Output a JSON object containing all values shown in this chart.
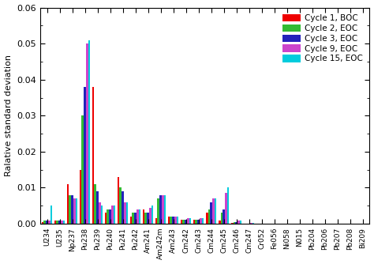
{
  "categories": [
    "U234",
    "U235",
    "Np237",
    "Pu238",
    "Pu239",
    "Pu240",
    "Pu241",
    "Pu242",
    "Am241",
    "Am242m",
    "Am243",
    "Cm242",
    "Cm243",
    "Cm244",
    "Cm245",
    "Cm246",
    "Cm247",
    "Cr052",
    "Fe056",
    "Ni058",
    "N015",
    "Pb204",
    "Pb206",
    "Pb207",
    "Pb208",
    "Bi209"
  ],
  "series": {
    "Cycle 1, BOC": [
      0.0004,
      0.0008,
      0.011,
      0.015,
      0.038,
      0.003,
      0.013,
      0.002,
      0.004,
      0.0015,
      0.002,
      0.0012,
      0.0012,
      0.003,
      0.001,
      0.0003,
      0.0001,
      0.0001,
      0.0001,
      0.0001,
      0.0001,
      0.0001,
      0.0001,
      0.0001,
      0.0001,
      0.0001
    ],
    "Cycle 2, EOC": [
      0.0008,
      0.0008,
      0.008,
      0.03,
      0.011,
      0.004,
      0.01,
      0.003,
      0.003,
      0.007,
      0.002,
      0.0012,
      0.0012,
      0.004,
      0.003,
      0.0004,
      0.0001,
      0.0001,
      0.0001,
      0.0001,
      0.0001,
      0.0001,
      0.0001,
      0.0001,
      0.0001,
      0.0001
    ],
    "Cycle 3, EOC": [
      0.0008,
      0.0008,
      0.008,
      0.038,
      0.009,
      0.004,
      0.009,
      0.003,
      0.003,
      0.008,
      0.002,
      0.0012,
      0.0012,
      0.006,
      0.004,
      0.0004,
      0.0001,
      0.0001,
      0.0001,
      0.0001,
      0.0001,
      0.0001,
      0.0001,
      0.0001,
      0.0001,
      0.0001
    ],
    "Cycle 9, EOC": [
      0.0008,
      0.0008,
      0.007,
      0.05,
      0.006,
      0.005,
      0.006,
      0.004,
      0.0045,
      0.008,
      0.002,
      0.0015,
      0.0015,
      0.007,
      0.0085,
      0.001,
      0.0002,
      0.0001,
      0.0001,
      0.0001,
      0.0001,
      0.0001,
      0.0001,
      0.0001,
      0.0001,
      0.0001
    ],
    "Cycle 15, EOC": [
      0.005,
      0.0008,
      0.007,
      0.051,
      0.005,
      0.005,
      0.006,
      0.004,
      0.005,
      0.008,
      0.002,
      0.0015,
      0.0015,
      0.007,
      0.01,
      0.001,
      0.0002,
      0.0001,
      0.0001,
      0.0001,
      0.0001,
      0.0001,
      0.0001,
      0.0001,
      0.0001,
      0.0001
    ]
  },
  "colors": {
    "Cycle 1, BOC": "#ee0000",
    "Cycle 2, EOC": "#33bb33",
    "Cycle 3, EOC": "#2222bb",
    "Cycle 9, EOC": "#cc44cc",
    "Cycle 15, EOC": "#00ccdd"
  },
  "ylabel": "Ralative standard deviation",
  "ylim": [
    0,
    0.06
  ],
  "yticks": [
    0.0,
    0.01,
    0.02,
    0.03,
    0.04,
    0.05,
    0.06
  ],
  "bg_color": "#ffffff",
  "fig_bg_color": "#ffffff",
  "legend_labels": [
    "Cycle 1, BOC",
    "Cycle 2, EOC",
    "Cycle 3, EOC",
    "Cycle 9, EOC",
    "Cycle 15, EOC"
  ]
}
